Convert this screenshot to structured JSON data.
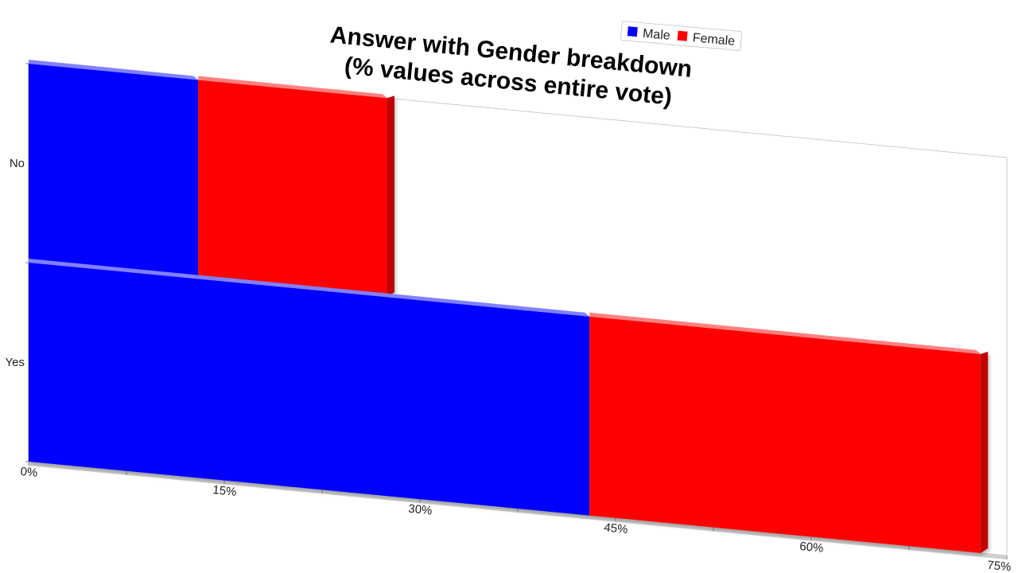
{
  "chart_data": {
    "type": "bar",
    "orientation": "horizontal",
    "stacked": true,
    "three_d": true,
    "title_lines": [
      "Answer with Gender breakdown",
      "(% values across entire vote)"
    ],
    "categories": [
      "No",
      "Yes"
    ],
    "series": [
      {
        "name": "Male",
        "color": "#0000ff",
        "values": [
          13,
          43
        ]
      },
      {
        "name": "Female",
        "color": "#ff0000",
        "values": [
          14.5,
          30
        ]
      }
    ],
    "x_ticks": [
      0,
      15,
      30,
      45,
      60,
      75
    ],
    "x_tick_labels": [
      "0%",
      "15%",
      "30%",
      "45%",
      "60%",
      "75%"
    ],
    "xlim": [
      0,
      75
    ],
    "legend_position": "top-right",
    "grid": false
  }
}
